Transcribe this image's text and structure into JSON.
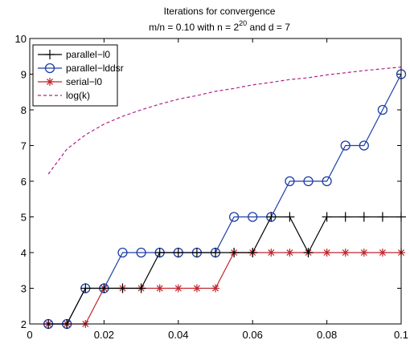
{
  "chart_data": {
    "type": "line",
    "title": "Iterations for convergence",
    "subtitle_main": "m/n = 0.10 with n = 2",
    "subtitle_exp": "20",
    "subtitle_tail": " and d = 7",
    "xlabel": "",
    "ylabel": "",
    "xlim": [
      0,
      0.1
    ],
    "ylim": [
      2,
      10
    ],
    "xticks": [
      0,
      0.02,
      0.04,
      0.06,
      0.08,
      0.1
    ],
    "xtick_labels": [
      "0",
      "0.02",
      "0.04",
      "0.06",
      "0.08",
      "0.1"
    ],
    "yticks": [
      2,
      3,
      4,
      5,
      6,
      7,
      8,
      9,
      10
    ],
    "ytick_labels": [
      "2",
      "3",
      "4",
      "5",
      "6",
      "7",
      "8",
      "9",
      "10"
    ],
    "grid": false,
    "legend_position": "top-left",
    "x": [
      0.005,
      0.01,
      0.015,
      0.02,
      0.025,
      0.03,
      0.035,
      0.04,
      0.045,
      0.05,
      0.055,
      0.06,
      0.065,
      0.07,
      0.075,
      0.08,
      0.085,
      0.09,
      0.095,
      0.1
    ],
    "series": [
      {
        "name": "parallel−l0",
        "color": "#000000",
        "marker": "plus",
        "dash": "solid",
        "values": [
          2,
          2,
          3,
          3,
          3,
          3,
          4,
          4,
          4,
          4,
          4,
          4,
          5,
          5,
          4,
          5,
          5,
          5,
          5,
          5
        ]
      },
      {
        "name": "parallel−lddsr",
        "color": "#1f3fa6",
        "marker": "circle",
        "dash": "solid",
        "values": [
          2,
          2,
          3,
          3,
          4,
          4,
          4,
          4,
          4,
          4,
          5,
          5,
          5,
          6,
          6,
          6,
          7,
          7,
          8,
          9
        ]
      },
      {
        "name": "serial−l0",
        "color": "#c0262d",
        "marker": "star",
        "dash": "solid",
        "values": [
          2,
          2,
          2,
          3,
          3,
          3,
          3,
          3,
          3,
          3,
          4,
          4,
          4,
          4,
          4,
          4,
          4,
          4,
          4,
          4
        ]
      },
      {
        "name": "log(k)",
        "color": "#b0208a",
        "marker": "none",
        "dash": "dashed",
        "values": [
          6.2,
          6.9,
          7.3,
          7.6,
          7.82,
          8.0,
          8.16,
          8.3,
          8.4,
          8.52,
          8.6,
          8.7,
          8.77,
          8.85,
          8.9,
          8.98,
          9.04,
          9.1,
          9.15,
          9.2
        ]
      }
    ]
  }
}
